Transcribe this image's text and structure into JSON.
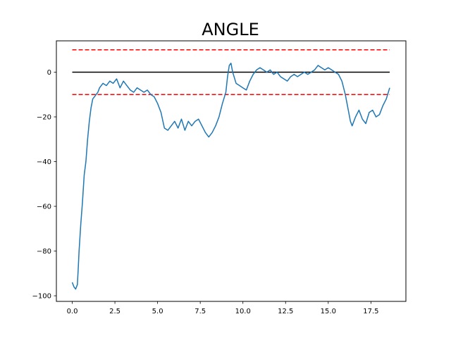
{
  "chart_data": {
    "type": "line",
    "title": "ANGLE",
    "xlabel": "",
    "ylabel": "",
    "xlim": [
      -0.93,
      19.55
    ],
    "ylim": [
      -102.5,
      14.0
    ],
    "x_ticks": [
      0.0,
      2.5,
      5.0,
      7.5,
      10.0,
      12.5,
      15.0,
      17.5
    ],
    "x_tick_labels": [
      "0.0",
      "2.5",
      "5.0",
      "7.5",
      "10.0",
      "12.5",
      "15.0",
      "17.5"
    ],
    "y_ticks": [
      -100,
      -80,
      -60,
      -40,
      -20,
      0
    ],
    "y_tick_labels": [
      "−100",
      "−80",
      "−60",
      "−40",
      "−20",
      "0"
    ],
    "grid": false,
    "reference_lines": [
      {
        "y": 10,
        "x_range": [
          0.0,
          18.6
        ],
        "style": "dashed",
        "color": "#ff0000"
      },
      {
        "y": 0,
        "x_range": [
          0.0,
          18.6
        ],
        "style": "solid",
        "color": "#000000"
      },
      {
        "y": -10,
        "x_range": [
          0.0,
          18.6
        ],
        "style": "dashed",
        "color": "#ff0000"
      }
    ],
    "series": [
      {
        "color": "#1f77b4",
        "x": [
          0.0,
          0.1,
          0.2,
          0.3,
          0.35,
          0.4,
          0.5,
          0.6,
          0.7,
          0.8,
          0.9,
          1.0,
          1.1,
          1.2,
          1.3,
          1.4,
          1.5,
          1.6,
          1.8,
          2.0,
          2.2,
          2.4,
          2.6,
          2.8,
          3.0,
          3.2,
          3.4,
          3.6,
          3.8,
          4.0,
          4.2,
          4.4,
          4.6,
          4.8,
          5.0,
          5.2,
          5.4,
          5.6,
          5.8,
          6.0,
          6.2,
          6.4,
          6.6,
          6.8,
          7.0,
          7.2,
          7.4,
          7.6,
          7.8,
          8.0,
          8.2,
          8.4,
          8.6,
          8.8,
          9.0,
          9.1,
          9.2,
          9.3,
          9.4,
          9.6,
          9.8,
          10.0,
          10.2,
          10.4,
          10.6,
          10.8,
          11.0,
          11.2,
          11.4,
          11.6,
          11.8,
          12.0,
          12.2,
          12.4,
          12.6,
          12.8,
          13.0,
          13.2,
          13.4,
          13.6,
          13.8,
          14.0,
          14.2,
          14.4,
          14.6,
          14.8,
          15.0,
          15.2,
          15.4,
          15.6,
          15.8,
          16.0,
          16.1,
          16.2,
          16.3,
          16.4,
          16.6,
          16.8,
          17.0,
          17.2,
          17.4,
          17.6,
          17.8,
          18.0,
          18.2,
          18.4,
          18.6
        ],
        "y": [
          -94,
          -96,
          -97,
          -95,
          -88,
          -80,
          -68,
          -58,
          -46,
          -40,
          -30,
          -22,
          -16,
          -12,
          -11,
          -10,
          -9,
          -7,
          -5,
          -6,
          -4,
          -5,
          -3,
          -7,
          -4,
          -6,
          -8,
          -9,
          -7,
          -8,
          -9,
          -8,
          -10,
          -11,
          -14,
          -18,
          -25,
          -26,
          -24,
          -22,
          -25,
          -21,
          -26,
          -22,
          -24,
          -22,
          -21,
          -24,
          -27,
          -29,
          -27,
          -24,
          -20,
          -14,
          -9,
          -2,
          3,
          4,
          0,
          -5,
          -6,
          -7,
          -8,
          -4,
          -1,
          1,
          2,
          1,
          0,
          1,
          -1,
          0,
          -2,
          -3,
          -4,
          -2,
          -1,
          -2,
          -1,
          0,
          -1,
          0,
          1,
          3,
          2,
          1,
          2,
          1,
          0,
          -1,
          -4,
          -10,
          -14,
          -18,
          -22,
          -24,
          -20,
          -17,
          -21,
          -23,
          -18,
          -17,
          -20,
          -19,
          -15,
          -12,
          -7
        ]
      }
    ]
  }
}
